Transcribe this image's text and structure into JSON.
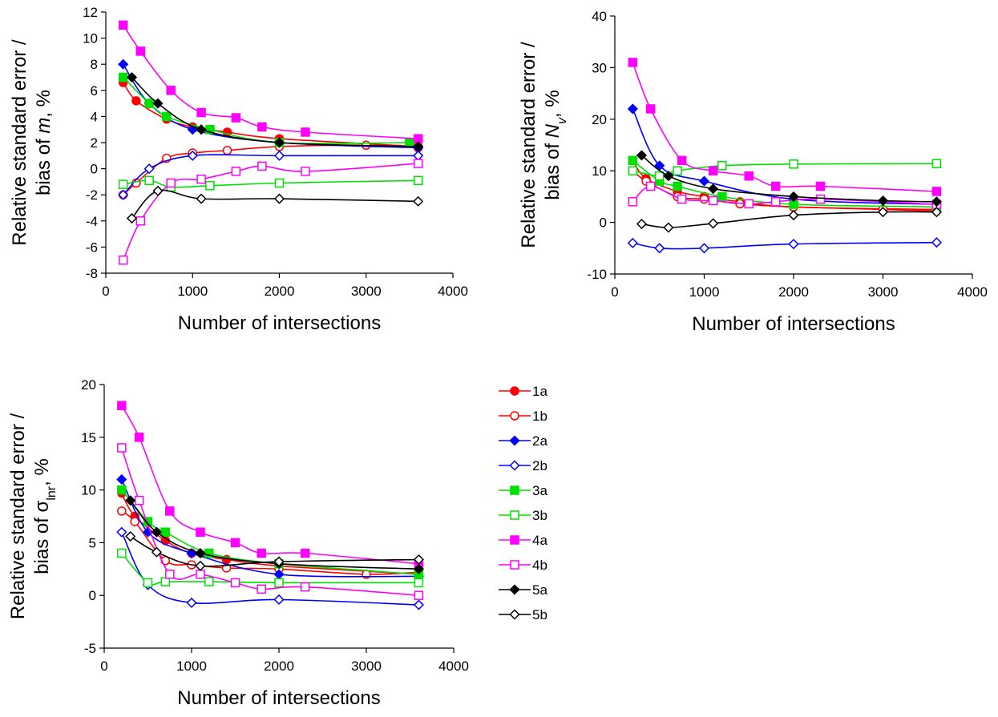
{
  "colors": {
    "1": "#ff0000",
    "2": "#0000ff",
    "3": "#00e000",
    "4": "#ff00ff",
    "5": "#000000"
  },
  "legend": {
    "entries": [
      {
        "label": "1a",
        "color": "#ff0000",
        "marker": "circle",
        "filled": true
      },
      {
        "label": "1b",
        "color": "#ff0000",
        "marker": "circle",
        "filled": false
      },
      {
        "label": "2a",
        "color": "#0000ff",
        "marker": "diamond",
        "filled": true
      },
      {
        "label": "2b",
        "color": "#0000ff",
        "marker": "diamond",
        "filled": false
      },
      {
        "label": "3a",
        "color": "#00e000",
        "marker": "square",
        "filled": true
      },
      {
        "label": "3b",
        "color": "#00e000",
        "marker": "square",
        "filled": false
      },
      {
        "label": "4a",
        "color": "#ff00ff",
        "marker": "square",
        "filled": true
      },
      {
        "label": "4b",
        "color": "#ff00ff",
        "marker": "square",
        "filled": false
      },
      {
        "label": "5a",
        "color": "#000000",
        "marker": "diamond",
        "filled": true
      },
      {
        "label": "5b",
        "color": "#000000",
        "marker": "diamond",
        "filled": false
      }
    ]
  },
  "chart_data": [
    {
      "type": "line",
      "xlabel": "Number of intersections",
      "ylabel_lines": [
        [
          {
            "t": "Relative standard error /"
          }
        ],
        [
          {
            "t": "bias of "
          },
          {
            "t": "m",
            "italic": true
          },
          {
            "t": ", %"
          }
        ]
      ],
      "xlim": [
        0,
        4000
      ],
      "ylim": [
        -8,
        12
      ],
      "xticks": [
        0,
        1000,
        2000,
        3000,
        4000
      ],
      "yticks": [
        -8,
        -6,
        -4,
        -2,
        0,
        2,
        4,
        6,
        8,
        10,
        12
      ],
      "series": [
        {
          "name": "1a",
          "x": [
            200,
            350,
            700,
            1000,
            1400,
            2000,
            3600
          ],
          "y": [
            6.6,
            5.2,
            3.8,
            3.2,
            2.8,
            2.3,
            1.7
          ]
        },
        {
          "name": "1b",
          "x": [
            200,
            350,
            700,
            1000,
            1400,
            2000,
            3000,
            3600
          ],
          "y": [
            -2.0,
            -1.1,
            0.8,
            1.2,
            1.4,
            1.7,
            1.8,
            1.6
          ]
        },
        {
          "name": "2a",
          "x": [
            200,
            500,
            1000,
            2000,
            3600
          ],
          "y": [
            8.0,
            5.0,
            3.0,
            2.0,
            1.6
          ]
        },
        {
          "name": "2b",
          "x": [
            200,
            500,
            1000,
            2000,
            3600
          ],
          "y": [
            -2.0,
            0.0,
            1.0,
            1.0,
            1.0
          ]
        },
        {
          "name": "3a",
          "x": [
            200,
            500,
            700,
            1200,
            2000,
            3500
          ],
          "y": [
            7.0,
            5.0,
            4.0,
            3.0,
            2.0,
            2.0
          ]
        },
        {
          "name": "3b",
          "x": [
            200,
            500,
            750,
            1200,
            2000,
            3600
          ],
          "y": [
            -1.2,
            -0.9,
            -1.4,
            -1.3,
            -1.1,
            -0.9
          ]
        },
        {
          "name": "4a",
          "x": [
            200,
            400,
            750,
            1100,
            1500,
            1800,
            2300,
            3600
          ],
          "y": [
            11.0,
            9.0,
            6.0,
            4.3,
            3.9,
            3.2,
            2.8,
            2.3
          ]
        },
        {
          "name": "4b",
          "x": [
            200,
            400,
            750,
            1100,
            1500,
            1800,
            2300,
            3600
          ],
          "y": [
            -7.0,
            -4.0,
            -1.1,
            -0.8,
            -0.2,
            0.2,
            -0.2,
            0.4
          ]
        },
        {
          "name": "5a",
          "x": [
            300,
            600,
            1100,
            2000,
            3600
          ],
          "y": [
            7.0,
            5.0,
            3.0,
            2.0,
            1.7
          ]
        },
        {
          "name": "5b",
          "x": [
            300,
            600,
            1100,
            2000,
            3600
          ],
          "y": [
            -3.8,
            -1.7,
            -2.3,
            -2.3,
            -2.5
          ]
        }
      ]
    },
    {
      "type": "line",
      "xlabel": "Number of intersections",
      "ylabel_lines": [
        [
          {
            "t": "Relative standard error /"
          }
        ],
        [
          {
            "t": "bias of "
          },
          {
            "t": "N",
            "italic": true
          },
          {
            "t": "v",
            "italic": true,
            "sub": true
          },
          {
            "t": ", %"
          }
        ]
      ],
      "xlim": [
        0,
        4000
      ],
      "ylim": [
        -10,
        40
      ],
      "xticks": [
        0,
        1000,
        2000,
        3000,
        4000
      ],
      "yticks": [
        -10,
        0,
        10,
        20,
        30,
        40
      ],
      "series": [
        {
          "name": "1a",
          "x": [
            200,
            350,
            700,
            1000,
            1400,
            2000,
            3600
          ],
          "y": [
            12.0,
            8.5,
            6.0,
            5.0,
            4.0,
            3.0,
            2.5
          ]
        },
        {
          "name": "1b",
          "x": [
            200,
            350,
            700,
            1000,
            1400,
            2000,
            3000,
            3600
          ],
          "y": [
            10.0,
            8.0,
            5.0,
            4.5,
            3.6,
            3.0,
            2.5,
            2.2
          ]
        },
        {
          "name": "2a",
          "x": [
            200,
            500,
            1000,
            2000,
            3600
          ],
          "y": [
            22.0,
            11.0,
            8.0,
            4.5,
            3.5
          ]
        },
        {
          "name": "2b",
          "x": [
            200,
            500,
            1000,
            2000,
            3600
          ],
          "y": [
            -4.0,
            -5.0,
            -5.0,
            -4.2,
            -3.9
          ]
        },
        {
          "name": "3a",
          "x": [
            200,
            500,
            700,
            1200,
            2000,
            3600
          ],
          "y": [
            12.0,
            8.0,
            7.0,
            5.0,
            3.5,
            3.0
          ]
        },
        {
          "name": "3b",
          "x": [
            200,
            500,
            700,
            1200,
            2000,
            3600
          ],
          "y": [
            10.0,
            9.0,
            10.0,
            11.0,
            11.3,
            11.4
          ]
        },
        {
          "name": "4a",
          "x": [
            200,
            400,
            750,
            1100,
            1500,
            1800,
            2300,
            3600
          ],
          "y": [
            31.0,
            22.0,
            12.0,
            10.0,
            9.0,
            7.0,
            7.0,
            6.0
          ]
        },
        {
          "name": "4b",
          "x": [
            200,
            400,
            750,
            1100,
            1500,
            1800,
            2300,
            3600
          ],
          "y": [
            4.0,
            7.0,
            4.5,
            4.2,
            3.6,
            4.0,
            4.5,
            3.5
          ]
        },
        {
          "name": "5a",
          "x": [
            300,
            600,
            1100,
            2000,
            3000,
            3600
          ],
          "y": [
            13.0,
            9.0,
            6.5,
            5.0,
            4.2,
            4.0
          ]
        },
        {
          "name": "5b",
          "x": [
            300,
            600,
            1100,
            2000,
            3000,
            3600
          ],
          "y": [
            -0.3,
            -1.0,
            -0.2,
            1.4,
            2.0,
            2.0
          ]
        }
      ]
    },
    {
      "type": "line",
      "xlabel": "Number of intersections",
      "ylabel_lines": [
        [
          {
            "t": "Relative standard error /"
          }
        ],
        [
          {
            "t": "bias of "
          },
          {
            "t": "σ"
          },
          {
            "t": "lnr",
            "sub": true
          },
          {
            "t": ", %"
          }
        ]
      ],
      "xlim": [
        0,
        4000
      ],
      "ylim": [
        -5,
        20
      ],
      "xticks": [
        0,
        1000,
        2000,
        3000,
        4000
      ],
      "yticks": [
        -5,
        0,
        5,
        10,
        15,
        20
      ],
      "series": [
        {
          "name": "1a",
          "x": [
            200,
            350,
            700,
            1000,
            1400,
            2000,
            3600
          ],
          "y": [
            9.7,
            7.5,
            5.2,
            4.0,
            3.4,
            2.8,
            2.0
          ]
        },
        {
          "name": "1b",
          "x": [
            200,
            350,
            700,
            1000,
            1400,
            2000,
            3000,
            3600
          ],
          "y": [
            8.0,
            7.0,
            3.3,
            2.9,
            2.6,
            2.5,
            2.0,
            2.2
          ]
        },
        {
          "name": "2a",
          "x": [
            200,
            500,
            1000,
            2000,
            3600
          ],
          "y": [
            11.0,
            6.0,
            4.0,
            2.0,
            1.8
          ]
        },
        {
          "name": "2b",
          "x": [
            200,
            500,
            1000,
            2000,
            3600
          ],
          "y": [
            6.0,
            1.0,
            -0.7,
            -0.4,
            -0.9
          ]
        },
        {
          "name": "3a",
          "x": [
            200,
            500,
            700,
            1200,
            2000,
            3600
          ],
          "y": [
            10.0,
            7.0,
            6.0,
            4.0,
            3.0,
            2.0
          ]
        },
        {
          "name": "3b",
          "x": [
            200,
            500,
            700,
            1200,
            2000,
            3600
          ],
          "y": [
            4.0,
            1.2,
            1.3,
            1.3,
            1.2,
            1.2
          ]
        },
        {
          "name": "4a",
          "x": [
            200,
            400,
            750,
            1100,
            1500,
            1800,
            2300,
            3600
          ],
          "y": [
            18.0,
            15.0,
            8.0,
            6.0,
            5.0,
            4.0,
            4.0,
            3.0
          ]
        },
        {
          "name": "4b",
          "x": [
            200,
            400,
            750,
            1100,
            1500,
            1800,
            2300,
            3600
          ],
          "y": [
            14.0,
            9.0,
            2.0,
            2.0,
            1.2,
            0.6,
            0.8,
            0.0
          ]
        },
        {
          "name": "5a",
          "x": [
            300,
            600,
            1100,
            2000,
            3600
          ],
          "y": [
            9.0,
            6.0,
            4.0,
            3.0,
            2.5
          ]
        },
        {
          "name": "5b",
          "x": [
            300,
            600,
            1100,
            2000,
            3600
          ],
          "y": [
            5.6,
            4.1,
            2.8,
            3.2,
            3.4
          ]
        }
      ]
    }
  ]
}
